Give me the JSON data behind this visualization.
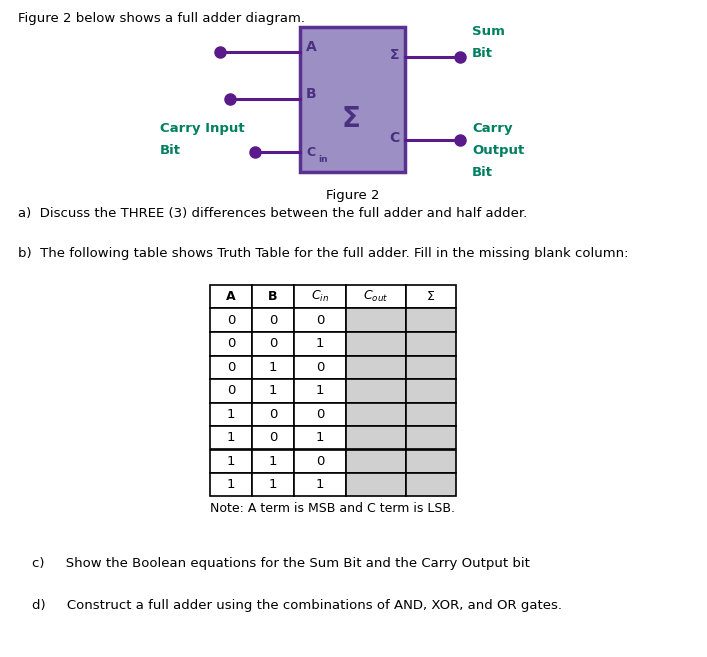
{
  "title_text": "Figure 2 below shows a full adder diagram.",
  "fig_label": "Figure 2",
  "box_color": "#9b8fc4",
  "box_edge_color": "#5a3090",
  "line_color": "#5a1a8a",
  "dot_color": "#5a1a8a",
  "label_color_green": "#008060",
  "label_color_box": "#4a3080",
  "question_a": "a)  Discuss the THREE (3) differences between the full adder and half adder.",
  "question_b": "b)  The following table shows Truth Table for the full adder. Fill in the missing blank column:",
  "note": "Note: A term is MSB and C term is LSB.",
  "question_c": "c)     Show the Boolean equations for the Sum Bit and the Carry Output bit",
  "question_d": "d)     Construct a full adder using the combinations of AND, XOR, and OR gates.",
  "table_data": [
    [
      0,
      0,
      0
    ],
    [
      0,
      0,
      1
    ],
    [
      0,
      1,
      0
    ],
    [
      0,
      1,
      1
    ],
    [
      1,
      0,
      0
    ],
    [
      1,
      0,
      1
    ],
    [
      1,
      1,
      0
    ],
    [
      1,
      1,
      1
    ]
  ],
  "bg_color": "#ffffff",
  "font_color": "#000000"
}
